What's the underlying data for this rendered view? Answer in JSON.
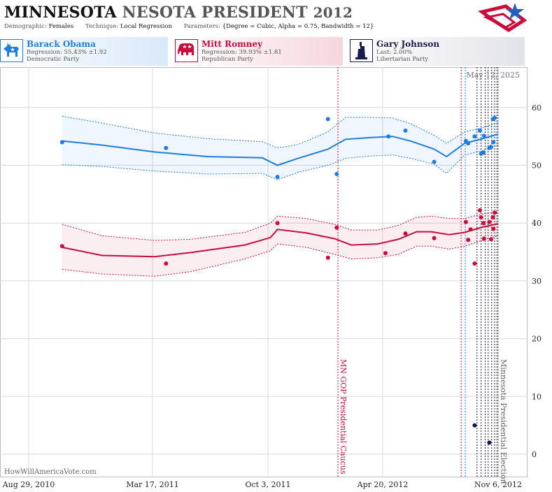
{
  "header": {
    "state": "MINNESOTA",
    "race": "NESOTA PRESIDENT",
    "year": "2012",
    "params": [
      {
        "key": "Demographic:",
        "value": "Females"
      },
      {
        "key": "Technique:",
        "value": "Local Regression"
      },
      {
        "key": "Parameters:",
        "value": "{Degree = Cubic, Alpha = 0.75, Bandwidth = 12}"
      }
    ]
  },
  "candidates": [
    {
      "name": "Barack Obama",
      "stat": "Regression: 55.43% ±1.92",
      "party": "Democratic Party",
      "color": "#1f7ce0",
      "icon": "donkey-icon"
    },
    {
      "name": "Mitt Romney",
      "stat": "Regression: 39.93% ±1.81",
      "party": "Republican Party",
      "color": "#cc0b3d",
      "icon": "elephant-icon"
    },
    {
      "name": "Gary Johnson",
      "stat": "Last: 2.00%",
      "party": "Libertarian Party",
      "color": "#1a1a4d",
      "icon": "statue-of-liberty-icon"
    }
  ],
  "colors": {
    "obama": "#1f7ce0",
    "romney": "#cc0b3d",
    "johnson": "#14144a",
    "vline": "#1a1a3a"
  },
  "chart_data": {
    "type": "line",
    "date_stamp": "May 12, 2025",
    "credit": "HowWillAmericaVote.com",
    "x_ticks": [
      "Aug 29, 2010",
      "Mar 17, 2011",
      "Oct 3, 2011",
      "Apr 20, 2012",
      "Nov 6, 2012"
    ],
    "xlim": [
      "2010-08-29",
      "2012-11-06"
    ],
    "ylim": [
      -4,
      67
    ],
    "y_ticks": [
      0,
      10,
      20,
      30,
      40,
      50,
      60
    ],
    "annotations": [
      {
        "date": "2012-02-07",
        "label": "MN GOP Presidential Caucus",
        "color": "#cc0b3d"
      },
      {
        "date": "2012-11-06",
        "label": "Minnesota Presidential Election",
        "color": "#666666"
      }
    ],
    "poll_dates": [
      "2012-09-04",
      "2012-09-11",
      "2012-10-01",
      "2012-10-08",
      "2012-10-15",
      "2012-10-20",
      "2012-10-26",
      "2012-10-31",
      "2012-11-04"
    ],
    "series": [
      {
        "name": "Barack Obama",
        "key": "obama",
        "points": [
          [
            "2010-10-25",
            54
          ],
          [
            "2011-04-20",
            53
          ],
          [
            "2011-10-27",
            48
          ],
          [
            "2012-01-21",
            58
          ],
          [
            "2012-02-05",
            48.5
          ],
          [
            "2012-05-03",
            55
          ],
          [
            "2012-06-01",
            56
          ],
          [
            "2012-07-20",
            50.6
          ],
          [
            "2012-09-12",
            54.2
          ],
          [
            "2012-09-16",
            53.8
          ],
          [
            "2012-09-27",
            55
          ],
          [
            "2012-10-06",
            56
          ],
          [
            "2012-10-08",
            52
          ],
          [
            "2012-10-12",
            52.2
          ],
          [
            "2012-10-13",
            55.1
          ],
          [
            "2012-10-22",
            53
          ],
          [
            "2012-10-25",
            53.2
          ],
          [
            "2012-10-28",
            58
          ],
          [
            "2012-10-29",
            54
          ],
          [
            "2012-10-31",
            58.2
          ]
        ],
        "trend": [
          [
            "2010-10-25",
            54.2
          ],
          [
            "2011-01-01",
            53.5
          ],
          [
            "2011-04-01",
            52.3
          ],
          [
            "2011-07-01",
            51.5
          ],
          [
            "2011-10-01",
            51.3
          ],
          [
            "2011-10-27",
            50
          ],
          [
            "2011-12-01",
            51.2
          ],
          [
            "2012-01-21",
            52.8
          ],
          [
            "2012-02-20",
            54.5
          ],
          [
            "2012-04-01",
            54.8
          ],
          [
            "2012-05-10",
            55
          ],
          [
            "2012-06-10",
            54.2
          ],
          [
            "2012-07-20",
            52.8
          ],
          [
            "2012-08-10",
            51.5
          ],
          [
            "2012-09-10",
            53.8
          ],
          [
            "2012-10-10",
            54.6
          ],
          [
            "2012-11-06",
            55.4
          ]
        ],
        "band_upper": [
          [
            "2010-10-25",
            58.5
          ],
          [
            "2011-01-01",
            57.3
          ],
          [
            "2011-04-01",
            55.6
          ],
          [
            "2011-07-01",
            54.6
          ],
          [
            "2011-10-01",
            54.1
          ],
          [
            "2011-10-27",
            53
          ],
          [
            "2011-12-01",
            53.6
          ],
          [
            "2012-01-21",
            55.8
          ],
          [
            "2012-02-20",
            58.3
          ],
          [
            "2012-04-01",
            58.3
          ],
          [
            "2012-05-10",
            58.2
          ],
          [
            "2012-06-10",
            57.2
          ],
          [
            "2012-07-20",
            55.2
          ],
          [
            "2012-08-10",
            53.8
          ],
          [
            "2012-09-10",
            55.8
          ],
          [
            "2012-10-10",
            56.5
          ],
          [
            "2012-11-06",
            57.4
          ]
        ],
        "band_lower": [
          [
            "2010-10-25",
            50.1
          ],
          [
            "2011-01-01",
            49.8
          ],
          [
            "2011-04-01",
            49
          ],
          [
            "2011-07-01",
            48.5
          ],
          [
            "2011-10-01",
            48.6
          ],
          [
            "2011-10-27",
            47.5
          ],
          [
            "2011-12-01",
            48.8
          ],
          [
            "2012-01-21",
            50
          ],
          [
            "2012-02-20",
            51.2
          ],
          [
            "2012-04-01",
            51.6
          ],
          [
            "2012-05-10",
            51.8
          ],
          [
            "2012-06-10",
            51.2
          ],
          [
            "2012-07-20",
            50.2
          ],
          [
            "2012-08-10",
            48.6
          ],
          [
            "2012-09-10",
            51.8
          ],
          [
            "2012-10-10",
            52.5
          ],
          [
            "2012-11-06",
            53.5
          ]
        ]
      },
      {
        "name": "Mitt Romney",
        "key": "romney",
        "points": [
          [
            "2010-10-25",
            36
          ],
          [
            "2011-04-20",
            33
          ],
          [
            "2011-10-27",
            40
          ],
          [
            "2012-01-21",
            34
          ],
          [
            "2012-02-05",
            39.2
          ],
          [
            "2012-04-28",
            34.8
          ],
          [
            "2012-06-01",
            38.2
          ],
          [
            "2012-07-20",
            37.4
          ],
          [
            "2012-09-12",
            40.2
          ],
          [
            "2012-09-16",
            37.1
          ],
          [
            "2012-09-20",
            38.9
          ],
          [
            "2012-09-27",
            33
          ],
          [
            "2012-10-06",
            42.2
          ],
          [
            "2012-10-08",
            41
          ],
          [
            "2012-10-12",
            40
          ],
          [
            "2012-10-13",
            37.3
          ],
          [
            "2012-10-22",
            40.2
          ],
          [
            "2012-10-25",
            37.2
          ],
          [
            "2012-10-28",
            41
          ],
          [
            "2012-10-29",
            39
          ],
          [
            "2012-10-31",
            41.8
          ]
        ],
        "trend": [
          [
            "2010-10-25",
            35.8
          ],
          [
            "2011-01-01",
            34.4
          ],
          [
            "2011-04-01",
            34.2
          ],
          [
            "2011-06-01",
            34.9
          ],
          [
            "2011-09-01",
            36.2
          ],
          [
            "2011-10-15",
            37.5
          ],
          [
            "2011-10-27",
            38.9
          ],
          [
            "2011-12-15",
            38.3
          ],
          [
            "2012-02-01",
            37.3
          ],
          [
            "2012-03-01",
            36.2
          ],
          [
            "2012-04-15",
            36.4
          ],
          [
            "2012-05-20",
            37.2
          ],
          [
            "2012-06-20",
            38.5
          ],
          [
            "2012-07-15",
            38.5
          ],
          [
            "2012-08-15",
            38
          ],
          [
            "2012-09-10",
            38.4
          ],
          [
            "2012-10-10",
            39.3
          ],
          [
            "2012-11-06",
            39.9
          ]
        ],
        "band_upper": [
          [
            "2010-10-25",
            39.8
          ],
          [
            "2011-01-01",
            37.8
          ],
          [
            "2011-04-01",
            37
          ],
          [
            "2011-06-01",
            37.2
          ],
          [
            "2011-09-01",
            38.4
          ],
          [
            "2011-10-15",
            40
          ],
          [
            "2011-10-27",
            41.2
          ],
          [
            "2011-12-15",
            40.8
          ],
          [
            "2012-02-01",
            39.8
          ],
          [
            "2012-03-01",
            38.8
          ],
          [
            "2012-04-15",
            38.8
          ],
          [
            "2012-05-20",
            39.6
          ],
          [
            "2012-06-20",
            41
          ],
          [
            "2012-07-15",
            41.2
          ],
          [
            "2012-08-15",
            40.8
          ],
          [
            "2012-09-10",
            40.8
          ],
          [
            "2012-10-10",
            41.6
          ],
          [
            "2012-11-06",
            42
          ]
        ],
        "band_lower": [
          [
            "2010-10-25",
            32
          ],
          [
            "2011-01-01",
            31.2
          ],
          [
            "2011-04-01",
            30.8
          ],
          [
            "2011-06-01",
            31.6
          ],
          [
            "2011-09-01",
            33.8
          ],
          [
            "2011-10-15",
            35.2
          ],
          [
            "2011-10-27",
            36.4
          ],
          [
            "2011-12-15",
            35.8
          ],
          [
            "2012-02-01",
            34.6
          ],
          [
            "2012-03-01",
            33.8
          ],
          [
            "2012-04-15",
            34
          ],
          [
            "2012-05-20",
            34.6
          ],
          [
            "2012-06-20",
            36
          ],
          [
            "2012-07-15",
            36
          ],
          [
            "2012-08-15",
            35.5
          ],
          [
            "2012-09-10",
            36
          ],
          [
            "2012-10-10",
            37
          ],
          [
            "2012-11-06",
            37.8
          ]
        ]
      },
      {
        "name": "Gary Johnson",
        "key": "johnson",
        "points": [
          [
            "2012-09-27",
            5
          ],
          [
            "2012-10-22",
            2
          ]
        ]
      }
    ]
  }
}
